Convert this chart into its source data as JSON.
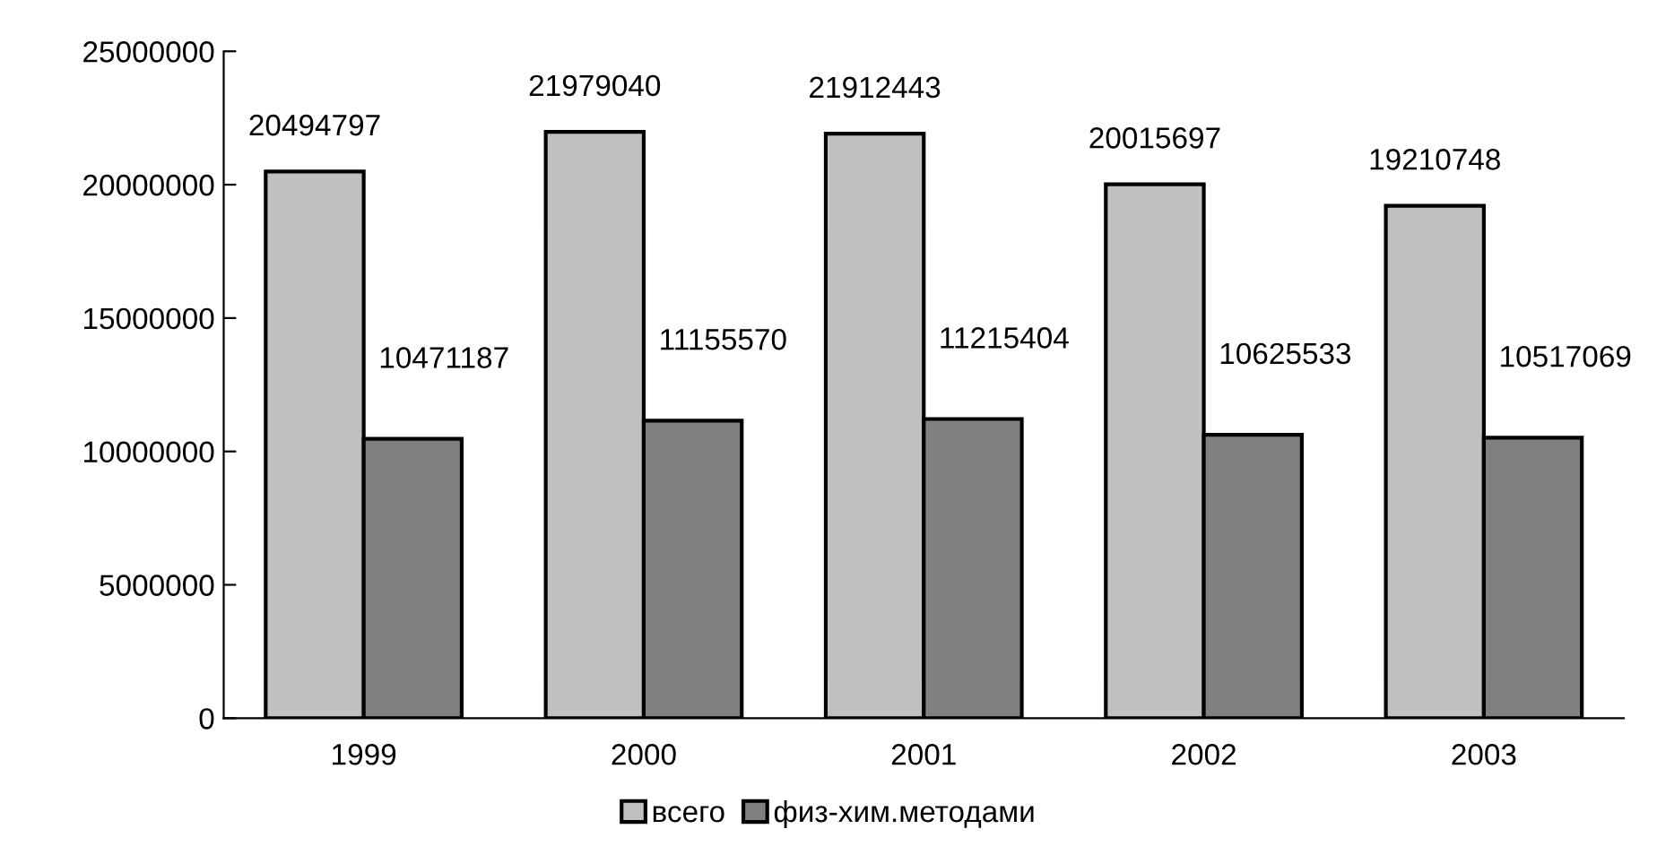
{
  "chart_data": {
    "type": "bar",
    "categories": [
      "1999",
      "2000",
      "2001",
      "2002",
      "2003"
    ],
    "series": [
      {
        "name": "всего",
        "color": "#c0c0c0",
        "values": [
          20494797,
          21979040,
          21912443,
          20015697,
          19210748
        ]
      },
      {
        "name": "физ-хим.методами",
        "color": "#808080",
        "values": [
          10471187,
          11155570,
          11215404,
          10625533,
          10517069
        ]
      }
    ],
    "ylim": [
      0,
      25000000
    ],
    "yticks": [
      0,
      5000000,
      10000000,
      15000000,
      20000000,
      25000000
    ],
    "data_labels": true,
    "legend": "bottom",
    "grid": false
  }
}
